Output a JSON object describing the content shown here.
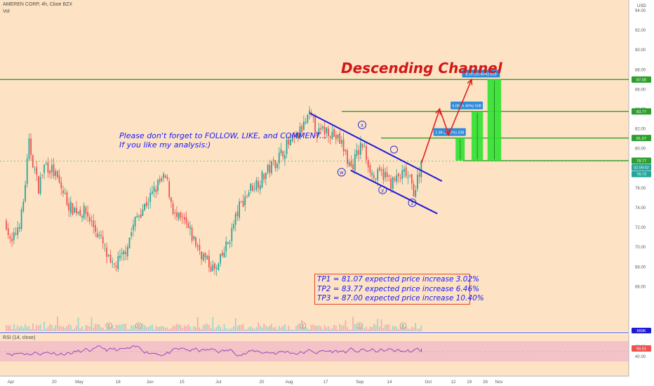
{
  "header": {
    "symbol_line": "AMEREN CORP, 4h, Cboe BZX",
    "vol_label": "Vol",
    "currency": "USD"
  },
  "annotations": {
    "title": "Descending Channel",
    "follow_note_line1": "Please don't forget to FOLLOW, LIKE, and COMMENT...",
    "follow_note_line2": "If you like my analysis:)",
    "tp1": "TP1 = 81.07 expected price increase  3.02%",
    "tp2": "TP2 = 83.77 expected price increase  6.46%",
    "tp3": "TP3 = 87.00 expected price increase 10.40%",
    "wave_labels": [
      "w",
      "x",
      "y",
      "z"
    ],
    "measure_labels": [
      "2.38 (3.02%) 238",
      "5.08 (6.46%) 508",
      "8.19 (10.40%) 819"
    ],
    "event_markers": [
      "E",
      "D",
      "E",
      "D",
      "E"
    ]
  },
  "rsi": {
    "label": "RSI (14, close)",
    "value": "56.51"
  },
  "price_labels": {
    "tp3": "87.00",
    "tp2": "83.77",
    "tp1": "81.07",
    "entry": "78.77",
    "countdown": "02:09:02",
    "last": "78.73",
    "volume_tag": "660K"
  },
  "chart_data": {
    "type": "candlestick",
    "title": "Descending Channel",
    "symbol": "AMEREN CORP, 4h, Cboe BZX",
    "ylim": [
      64,
      95
    ],
    "y_ticks": [
      "94.00",
      "92.00",
      "90.00",
      "88.00",
      "86.00",
      "84.00",
      "82.00",
      "80.00",
      "78.00",
      "76.00",
      "74.00",
      "72.00",
      "70.00",
      "68.00",
      "66.00"
    ],
    "x_ticks": [
      "Apr",
      "20",
      "May",
      "18",
      "Jun",
      "15",
      "Jul",
      "20",
      "Aug",
      "17",
      "Sep",
      "14",
      "Oct",
      "12",
      "19",
      "26",
      "Nov"
    ],
    "price_path": [
      {
        "x": "Mar 30",
        "close": 72.5
      },
      {
        "x": "Apr 1",
        "close": 70.0
      },
      {
        "x": "Apr 6",
        "close": 73.5
      },
      {
        "x": "Apr 9",
        "close": 80.5
      },
      {
        "x": "Apr 13",
        "close": 76.0
      },
      {
        "x": "Apr 16",
        "close": 78.5
      },
      {
        "x": "Apr 20",
        "close": 77.5
      },
      {
        "x": "Apr 27",
        "close": 74.0
      },
      {
        "x": "May 4",
        "close": 73.5
      },
      {
        "x": "May 11",
        "close": 70.5
      },
      {
        "x": "May 15",
        "close": 67.8
      },
      {
        "x": "May 20",
        "close": 69.0
      },
      {
        "x": "May 26",
        "close": 73.0
      },
      {
        "x": "Jun 1",
        "close": 75.0
      },
      {
        "x": "Jun 5",
        "close": 76.5
      },
      {
        "x": "Jun 8",
        "close": 77.0
      },
      {
        "x": "Jun 12",
        "close": 73.0
      },
      {
        "x": "Jun 16",
        "close": 72.5
      },
      {
        "x": "Jun 22",
        "close": 70.0
      },
      {
        "x": "Jun 26",
        "close": 68.5
      },
      {
        "x": "Jun 30",
        "close": 67.5
      },
      {
        "x": "Jul 6",
        "close": 71.0
      },
      {
        "x": "Jul 10",
        "close": 74.0
      },
      {
        "x": "Jul 15",
        "close": 76.0
      },
      {
        "x": "Jul 20",
        "close": 77.0
      },
      {
        "x": "Jul 27",
        "close": 79.0
      },
      {
        "x": "Jul 31",
        "close": 80.3
      },
      {
        "x": "Aug 4",
        "close": 81.0
      },
      {
        "x": "Aug 10",
        "close": 83.3
      },
      {
        "x": "Aug 14",
        "close": 81.5
      },
      {
        "x": "Aug 18",
        "close": 82.0
      },
      {
        "x": "Aug 24",
        "close": 80.5
      },
      {
        "x": "Aug 28",
        "close": 78.0
      },
      {
        "x": "Sep 2",
        "close": 80.5
      },
      {
        "x": "Sep 7",
        "close": 77.0
      },
      {
        "x": "Sep 11",
        "close": 77.5
      },
      {
        "x": "Sep 15",
        "close": 76.5
      },
      {
        "x": "Sep 21",
        "close": 77.5
      },
      {
        "x": "Sep 25",
        "close": 75.6
      },
      {
        "x": "Sep 28",
        "close": 78.7
      }
    ],
    "horizontal_levels": [
      87.0,
      83.77,
      81.07,
      78.77
    ],
    "channel": {
      "upper": [
        {
          "x": "Aug 10",
          "y": 83.6
        },
        {
          "x": "Oct 7",
          "y": 76.7
        }
      ],
      "lower": [
        {
          "x": "Aug 28",
          "y": 77.8
        },
        {
          "x": "Oct 5",
          "y": 73.4
        }
      ]
    },
    "projection_path": [
      {
        "x": "Sep 28",
        "y": 78.5
      },
      {
        "x": "Oct 6",
        "y": 84.0
      },
      {
        "x": "Oct 10",
        "y": 81.4
      },
      {
        "x": "Oct 20",
        "y": 87.0
      }
    ],
    "targets": [
      {
        "name": "TP1",
        "price": 81.07,
        "increase_pct": 3.02,
        "change": 2.38
      },
      {
        "name": "TP2",
        "price": 83.77,
        "increase_pct": 6.46,
        "change": 5.08
      },
      {
        "name": "TP3",
        "price": 87.0,
        "increase_pct": 10.4,
        "change": 8.19
      }
    ],
    "last_price": 78.73,
    "rsi": {
      "period": 14,
      "value": 56.51,
      "band": [
        30,
        70
      ],
      "y_ticks": [
        "60.00",
        "40.00"
      ]
    },
    "grid": false
  }
}
